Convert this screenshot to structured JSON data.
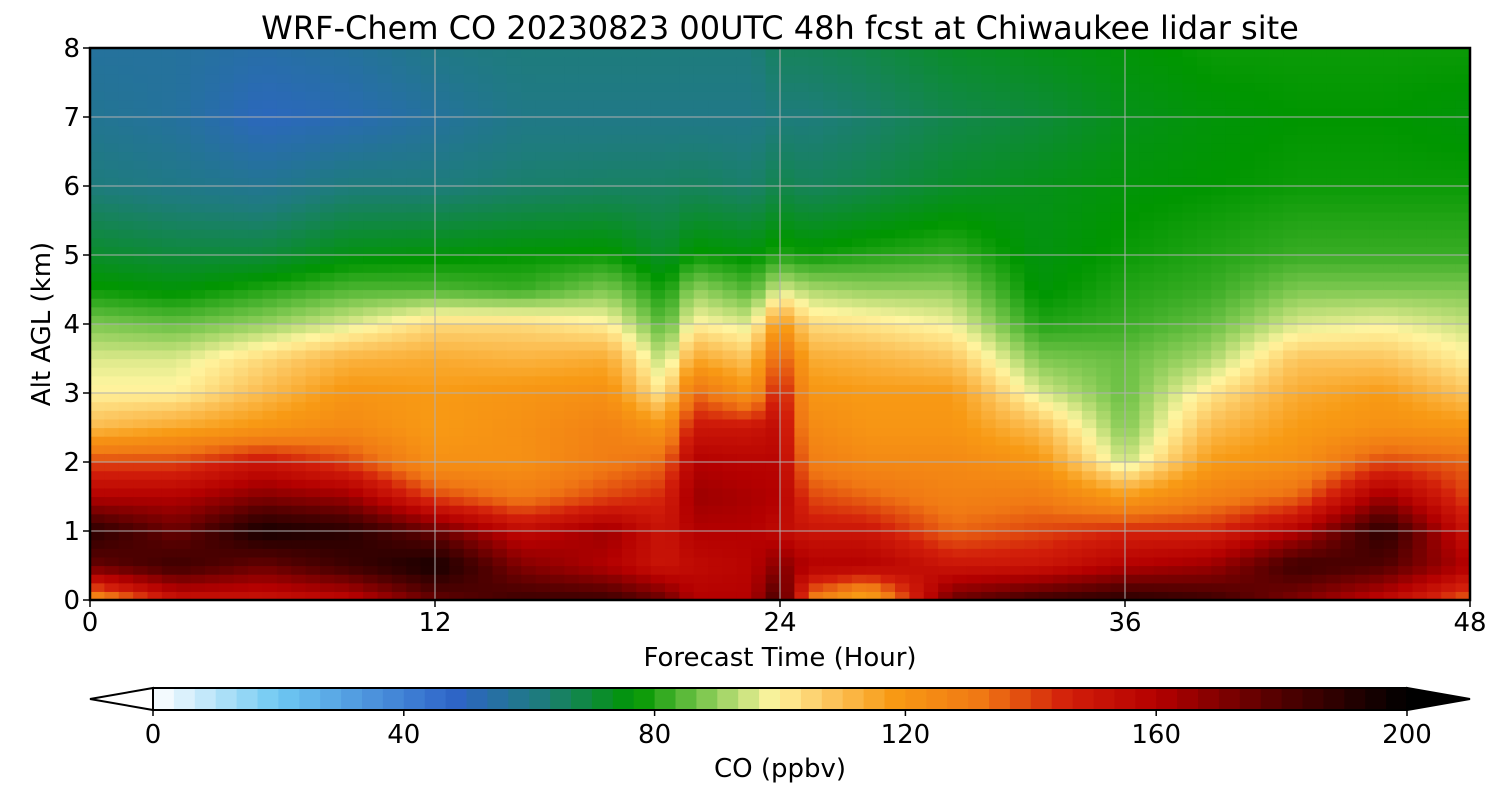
{
  "chart_data": {
    "type": "heatmap",
    "title": "WRF-Chem CO  20230823 00UTC 48h fcst at Chiwaukee lidar site",
    "xlabel": "Forecast Time (Hour)",
    "ylabel": "Alt AGL (km)",
    "xlim": [
      0,
      48
    ],
    "ylim": [
      0,
      8
    ],
    "xticks": [
      0,
      12,
      24,
      36,
      48
    ],
    "yticks": [
      0,
      1,
      2,
      3,
      4,
      5,
      6,
      7,
      8
    ],
    "grid": true,
    "colorbar": {
      "label": "CO  (ppbv)",
      "orientation": "horizontal",
      "location": "bottom",
      "range": [
        0,
        200
      ],
      "ticks": [
        0,
        40,
        80,
        120,
        160,
        200
      ],
      "extend": "both",
      "stops": [
        {
          "value": 0,
          "color": "#ffffff"
        },
        {
          "value": 20,
          "color": "#6ec8f2"
        },
        {
          "value": 48,
          "color": "#2e64c8"
        },
        {
          "value": 62,
          "color": "#1e7c7c"
        },
        {
          "value": 77,
          "color": "#009600"
        },
        {
          "value": 88,
          "color": "#7ec850"
        },
        {
          "value": 99,
          "color": "#fff5a0"
        },
        {
          "value": 108,
          "color": "#fcc45c"
        },
        {
          "value": 118,
          "color": "#f89a14"
        },
        {
          "value": 132,
          "color": "#f07814"
        },
        {
          "value": 146,
          "color": "#d21e0a"
        },
        {
          "value": 160,
          "color": "#b40000"
        },
        {
          "value": 180,
          "color": "#500000"
        },
        {
          "value": 200,
          "color": "#000000"
        }
      ]
    },
    "hours": [
      0,
      3,
      6,
      9,
      12,
      15,
      18,
      20,
      21,
      23,
      24,
      25,
      27,
      30,
      33,
      36,
      39,
      42,
      45,
      48
    ],
    "altitudes_km": [
      0,
      0.5,
      1,
      1.5,
      2,
      2.5,
      3,
      3.5,
      4,
      4.5,
      5,
      6,
      7,
      8
    ],
    "co_ppbv_profiles": [
      [
        120,
        175,
        190,
        160,
        140,
        110,
        100,
        96,
        88,
        78,
        72,
        62,
        58,
        56
      ],
      [
        150,
        185,
        175,
        160,
        140,
        115,
        100,
        96,
        86,
        76,
        70,
        60,
        56,
        56
      ],
      [
        150,
        175,
        195,
        170,
        150,
        120,
        110,
        104,
        90,
        80,
        70,
        58,
        50,
        54
      ],
      [
        155,
        185,
        190,
        165,
        140,
        125,
        120,
        112,
        96,
        84,
        75,
        62,
        52,
        56
      ],
      [
        175,
        195,
        175,
        140,
        122,
        118,
        118,
        114,
        104,
        84,
        76,
        62,
        56,
        60
      ],
      [
        185,
        170,
        155,
        130,
        122,
        122,
        120,
        112,
        104,
        82,
        77,
        64,
        60,
        62
      ],
      [
        185,
        160,
        165,
        140,
        130,
        128,
        122,
        114,
        100,
        88,
        78,
        65,
        60,
        62
      ],
      [
        175,
        150,
        150,
        145,
        135,
        120,
        100,
        92,
        84,
        78,
        72,
        65,
        60,
        62
      ],
      [
        160,
        155,
        160,
        165,
        160,
        150,
        135,
        115,
        100,
        90,
        78,
        66,
        60,
        62
      ],
      [
        160,
        158,
        160,
        162,
        158,
        150,
        120,
        108,
        96,
        84,
        76,
        64,
        60,
        62
      ],
      [
        185,
        170,
        155,
        160,
        158,
        155,
        150,
        140,
        120,
        96,
        80,
        68,
        62,
        66
      ],
      [
        130,
        160,
        150,
        140,
        130,
        125,
        120,
        114,
        104,
        92,
        78,
        66,
        62,
        66
      ],
      [
        110,
        160,
        150,
        135,
        125,
        120,
        118,
        112,
        102,
        90,
        80,
        68,
        64,
        68
      ],
      [
        175,
        150,
        135,
        128,
        125,
        120,
        118,
        108,
        98,
        90,
        82,
        72,
        68,
        72
      ],
      [
        185,
        150,
        140,
        130,
        120,
        110,
        96,
        88,
        80,
        76,
        75,
        74,
        70,
        74
      ],
      [
        190,
        160,
        145,
        118,
        94,
        88,
        86,
        86,
        82,
        80,
        78,
        76,
        74,
        76
      ],
      [
        185,
        165,
        145,
        128,
        118,
        110,
        102,
        92,
        86,
        82,
        80,
        77,
        76,
        78
      ],
      [
        170,
        185,
        160,
        135,
        122,
        118,
        114,
        108,
        96,
        88,
        82,
        78,
        77,
        78
      ],
      [
        155,
        180,
        190,
        165,
        140,
        122,
        118,
        108,
        98,
        88,
        82,
        78,
        77,
        78
      ],
      [
        135,
        160,
        150,
        140,
        135,
        120,
        108,
        100,
        94,
        88,
        82,
        78,
        76,
        78
      ]
    ]
  }
}
